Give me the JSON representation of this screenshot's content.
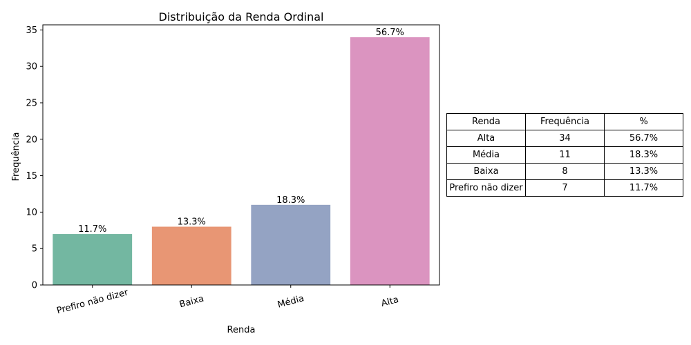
{
  "chart_data": {
    "type": "bar",
    "title": "Distribuição da Renda Ordinal",
    "xlabel": "Renda",
    "ylabel": "Frequência",
    "categories": [
      "Prefiro não dizer",
      "Baixa",
      "Média",
      "Alta"
    ],
    "values": [
      7,
      8,
      11,
      34
    ],
    "bar_labels": [
      "11.7%",
      "13.3%",
      "18.3%",
      "56.7%"
    ],
    "colors": [
      "#73b7a1",
      "#e89674",
      "#94a3c3",
      "#db94c0"
    ],
    "ylim": [
      0,
      35.7
    ],
    "yticks": [
      0,
      5,
      10,
      15,
      20,
      25,
      30,
      35
    ],
    "x_tick_rotation_deg": 15,
    "grid": false,
    "legend": "none"
  },
  "table": {
    "headers": [
      "Renda",
      "Frequência",
      "%"
    ],
    "rows": [
      [
        "Alta",
        "34",
        "56.7%"
      ],
      [
        "Média",
        "11",
        "18.3%"
      ],
      [
        "Baixa",
        "8",
        "13.3%"
      ],
      [
        "Prefiro não dizer",
        "7",
        "11.7%"
      ]
    ]
  }
}
